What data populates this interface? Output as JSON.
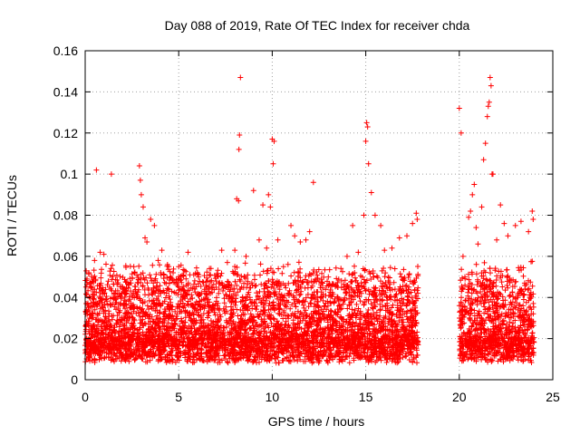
{
  "chart_data": {
    "type": "scatter",
    "title": "Day 088 of 2019, Rate Of TEC Index for receiver chda",
    "xlabel": "GPS time / hours",
    "ylabel": "ROTI / TECUs",
    "xlim": [
      0,
      25
    ],
    "ylim": [
      0,
      0.16
    ],
    "xticks": [
      0,
      5,
      10,
      15,
      20,
      25
    ],
    "yticks": [
      0,
      0.02,
      0.04,
      0.06,
      0.08,
      0.1,
      0.12,
      0.14,
      0.16
    ],
    "xtick_labels": [
      "0",
      "5",
      "10",
      "15",
      "20",
      "25"
    ],
    "ytick_labels": [
      "0",
      "0.02",
      "0.04",
      "0.06",
      "0.08",
      "0.1",
      "0.12",
      "0.14",
      "0.16"
    ],
    "grid": true,
    "marker": "+",
    "color": "#ff0000",
    "data_gaps_hours": [
      [
        17.8,
        20.0
      ]
    ],
    "background_band": {
      "x_range": [
        0,
        17.8
      ],
      "typical_y": [
        0.008,
        0.035
      ]
    },
    "series": [
      {
        "name": "ROTI",
        "points": [
          [
            0.1,
            0.049
          ],
          [
            0.2,
            0.052
          ],
          [
            0.3,
            0.045
          ],
          [
            0.4,
            0.041
          ],
          [
            0.5,
            0.058
          ],
          [
            0.6,
            0.102
          ],
          [
            0.8,
            0.062
          ],
          [
            1.0,
            0.061
          ],
          [
            1.3,
            0.045
          ],
          [
            1.4,
            0.1
          ],
          [
            2.0,
            0.045
          ],
          [
            2.6,
            0.055
          ],
          [
            2.9,
            0.104
          ],
          [
            2.95,
            0.097
          ],
          [
            3.0,
            0.09
          ],
          [
            3.1,
            0.084
          ],
          [
            3.2,
            0.069
          ],
          [
            3.3,
            0.067
          ],
          [
            3.5,
            0.078
          ],
          [
            3.7,
            0.075
          ],
          [
            3.9,
            0.058
          ],
          [
            4.1,
            0.063
          ],
          [
            4.4,
            0.056
          ],
          [
            4.7,
            0.052
          ],
          [
            5.0,
            0.055
          ],
          [
            5.5,
            0.062
          ],
          [
            6.0,
            0.052
          ],
          [
            6.5,
            0.045
          ],
          [
            7.0,
            0.048
          ],
          [
            7.3,
            0.063
          ],
          [
            7.6,
            0.057
          ],
          [
            8.0,
            0.063
          ],
          [
            8.1,
            0.088
          ],
          [
            8.2,
            0.087
          ],
          [
            8.3,
            0.147
          ],
          [
            8.25,
            0.119
          ],
          [
            8.22,
            0.112
          ],
          [
            8.6,
            0.06
          ],
          [
            9.0,
            0.092
          ],
          [
            9.3,
            0.068
          ],
          [
            9.5,
            0.085
          ],
          [
            9.7,
            0.064
          ],
          [
            9.8,
            0.09
          ],
          [
            9.9,
            0.084
          ],
          [
            10.0,
            0.117
          ],
          [
            10.05,
            0.105
          ],
          [
            10.1,
            0.116
          ],
          [
            10.3,
            0.068
          ],
          [
            10.6,
            0.055
          ],
          [
            11.0,
            0.075
          ],
          [
            11.2,
            0.07
          ],
          [
            11.5,
            0.067
          ],
          [
            11.8,
            0.068
          ],
          [
            12.0,
            0.072
          ],
          [
            12.2,
            0.096
          ],
          [
            12.5,
            0.048
          ],
          [
            13.0,
            0.05
          ],
          [
            13.5,
            0.045
          ],
          [
            14.0,
            0.06
          ],
          [
            14.3,
            0.075
          ],
          [
            14.6,
            0.062
          ],
          [
            14.9,
            0.08
          ],
          [
            15.0,
            0.116
          ],
          [
            15.05,
            0.125
          ],
          [
            15.1,
            0.123
          ],
          [
            15.15,
            0.105
          ],
          [
            15.3,
            0.091
          ],
          [
            15.5,
            0.08
          ],
          [
            15.8,
            0.075
          ],
          [
            16.0,
            0.063
          ],
          [
            16.4,
            0.064
          ],
          [
            16.8,
            0.069
          ],
          [
            17.2,
            0.07
          ],
          [
            17.5,
            0.076
          ],
          [
            17.7,
            0.081
          ],
          [
            17.75,
            0.078
          ],
          [
            20.0,
            0.132
          ],
          [
            20.1,
            0.12
          ],
          [
            20.2,
            0.06
          ],
          [
            20.3,
            0.05
          ],
          [
            20.5,
            0.079
          ],
          [
            20.6,
            0.082
          ],
          [
            20.7,
            0.09
          ],
          [
            20.8,
            0.095
          ],
          [
            20.9,
            0.074
          ],
          [
            21.0,
            0.066
          ],
          [
            21.2,
            0.084
          ],
          [
            21.3,
            0.107
          ],
          [
            21.4,
            0.115
          ],
          [
            21.5,
            0.128
          ],
          [
            21.55,
            0.133
          ],
          [
            21.6,
            0.135
          ],
          [
            21.65,
            0.147
          ],
          [
            21.7,
            0.143
          ],
          [
            21.75,
            0.1
          ],
          [
            21.8,
            0.1
          ],
          [
            22.0,
            0.068
          ],
          [
            22.2,
            0.085
          ],
          [
            22.4,
            0.076
          ],
          [
            22.6,
            0.07
          ],
          [
            23.0,
            0.075
          ],
          [
            23.3,
            0.077
          ],
          [
            23.7,
            0.072
          ],
          [
            23.9,
            0.082
          ],
          [
            23.95,
            0.078
          ]
        ]
      }
    ]
  }
}
